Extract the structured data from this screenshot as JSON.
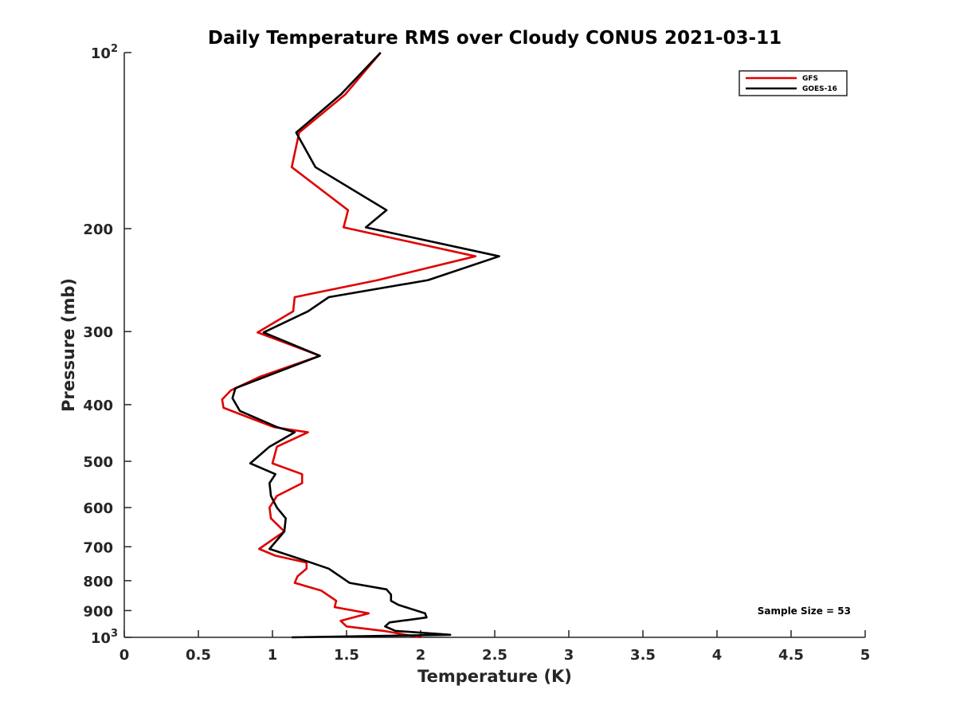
{
  "chart_data": {
    "type": "line",
    "title": "Daily Temperature RMS over Cloudy CONUS 2021-03-11",
    "xlabel": "Temperature (K)",
    "ylabel": "Pressure (mb)",
    "xlim": [
      0,
      5
    ],
    "ylim": [
      100,
      1000
    ],
    "y_scale": "log",
    "y_reversed": true,
    "grid": false,
    "legend_position": "top-right",
    "x_ticks": [
      "0",
      "0.5",
      "1",
      "1.5",
      "2",
      "2.5",
      "3",
      "3.5",
      "4",
      "4.5",
      "5"
    ],
    "y_ticks": [
      {
        "value": 100,
        "base": "10",
        "exp": "2"
      },
      {
        "value": 200,
        "label": "200"
      },
      {
        "value": 300,
        "label": "300"
      },
      {
        "value": 400,
        "label": "400"
      },
      {
        "value": 500,
        "label": "500"
      },
      {
        "value": 600,
        "label": "600"
      },
      {
        "value": 700,
        "label": "700"
      },
      {
        "value": 800,
        "label": "800"
      },
      {
        "value": 900,
        "label": "900"
      },
      {
        "value": 1000,
        "base": "10",
        "exp": "3"
      }
    ],
    "annotation": "Sample Size = 53",
    "series": [
      {
        "name": "GFS",
        "color": "#e00000",
        "points": [
          [
            1.73,
            100
          ],
          [
            1.49,
            118
          ],
          [
            1.18,
            137
          ],
          [
            1.13,
            157
          ],
          [
            1.51,
            186
          ],
          [
            1.48,
            199
          ],
          [
            2.37,
            223
          ],
          [
            1.71,
            245
          ],
          [
            1.15,
            262
          ],
          [
            1.14,
            277
          ],
          [
            0.9,
            301
          ],
          [
            1.32,
            330
          ],
          [
            0.92,
            358
          ],
          [
            0.72,
            378
          ],
          [
            0.66,
            392
          ],
          [
            0.67,
            405
          ],
          [
            1.01,
            437
          ],
          [
            1.24,
            446
          ],
          [
            1.03,
            472
          ],
          [
            1.0,
            504
          ],
          [
            1.2,
            526
          ],
          [
            1.2,
            545
          ],
          [
            1.03,
            573
          ],
          [
            0.98,
            600
          ],
          [
            0.99,
            626
          ],
          [
            1.08,
            659
          ],
          [
            0.91,
            706
          ],
          [
            1.02,
            725
          ],
          [
            1.23,
            745
          ],
          [
            1.23,
            763
          ],
          [
            1.17,
            786
          ],
          [
            1.15,
            807
          ],
          [
            1.33,
            832
          ],
          [
            1.43,
            866
          ],
          [
            1.42,
            888
          ],
          [
            1.65,
            910
          ],
          [
            1.46,
            937
          ],
          [
            1.5,
            958
          ],
          [
            1.75,
            975
          ],
          [
            2.0,
            1000
          ]
        ]
      },
      {
        "name": "GOES-16",
        "color": "#000000",
        "points": [
          [
            1.73,
            100
          ],
          [
            1.46,
            118
          ],
          [
            1.16,
            137
          ],
          [
            1.29,
            157
          ],
          [
            1.77,
            186
          ],
          [
            1.63,
            199
          ],
          [
            2.53,
            223
          ],
          [
            2.05,
            245
          ],
          [
            1.38,
            262
          ],
          [
            1.24,
            277
          ],
          [
            0.94,
            301
          ],
          [
            1.32,
            330
          ],
          [
            0.75,
            375
          ],
          [
            0.73,
            390
          ],
          [
            0.78,
            410
          ],
          [
            1.03,
            437
          ],
          [
            1.15,
            446
          ],
          [
            0.98,
            472
          ],
          [
            0.85,
            504
          ],
          [
            1.02,
            526
          ],
          [
            0.98,
            545
          ],
          [
            0.99,
            573
          ],
          [
            1.03,
            600
          ],
          [
            1.09,
            626
          ],
          [
            1.08,
            659
          ],
          [
            0.98,
            706
          ],
          [
            1.26,
            745
          ],
          [
            1.38,
            763
          ],
          [
            1.52,
            807
          ],
          [
            1.77,
            828
          ],
          [
            1.8,
            845
          ],
          [
            1.8,
            866
          ],
          [
            1.85,
            880
          ],
          [
            2.03,
            910
          ],
          [
            2.04,
            925
          ],
          [
            1.79,
            943
          ],
          [
            1.76,
            958
          ],
          [
            1.83,
            975
          ],
          [
            2.2,
            990
          ],
          [
            1.13,
            1000
          ]
        ]
      }
    ]
  }
}
